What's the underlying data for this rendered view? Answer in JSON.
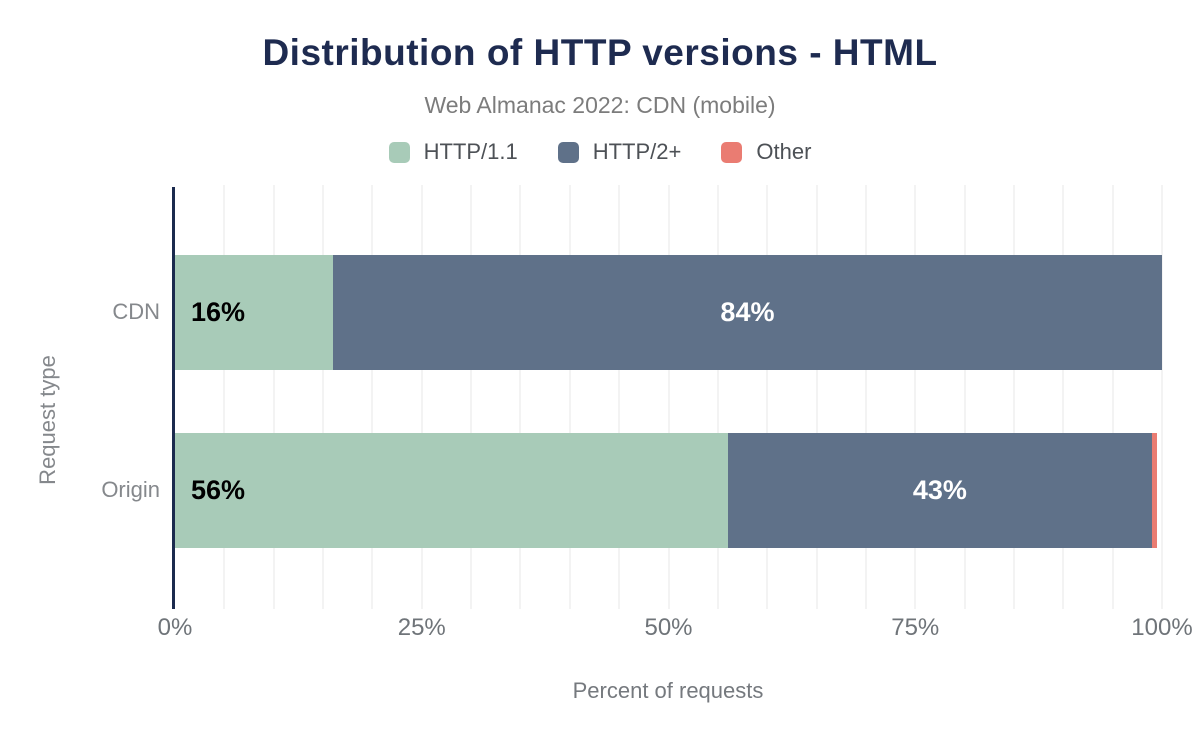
{
  "chart_data": {
    "type": "bar",
    "orientation": "horizontal",
    "stacked": true,
    "title": "Distribution of HTTP versions - HTML",
    "subtitle": "Web Almanac 2022: CDN (mobile)",
    "xlabel": "Percent of requests",
    "ylabel": "Request type",
    "xlim": [
      0,
      100
    ],
    "x_tick_labels": [
      "0%",
      "25%",
      "50%",
      "75%",
      "100%"
    ],
    "grid": {
      "vertical": true,
      "interval_percent": 5,
      "color": "#f3f3f3"
    },
    "legend_position": "top",
    "categories": [
      "CDN",
      "Origin"
    ],
    "series": [
      {
        "name": "HTTP/1.1",
        "color": "#a8cbb8",
        "values": [
          16,
          56
        ],
        "labels": [
          "16%",
          "56%"
        ],
        "label_color": "#000000"
      },
      {
        "name": "HTTP/2+",
        "color": "#5f7189",
        "values": [
          84,
          43
        ],
        "labels": [
          "84%",
          "43%"
        ],
        "label_color": "#ffffff"
      },
      {
        "name": "Other",
        "color": "#ea7c72",
        "values": [
          0,
          0.5
        ],
        "labels": [
          "",
          ""
        ],
        "label_color": "#ffffff"
      }
    ],
    "colors": {
      "title_text": "#1e2b50",
      "subtitle_text": "#7c7c7c",
      "axis_line": "#1b2a4e",
      "tick_text": "#6f7479",
      "category_text": "#85888c"
    }
  }
}
